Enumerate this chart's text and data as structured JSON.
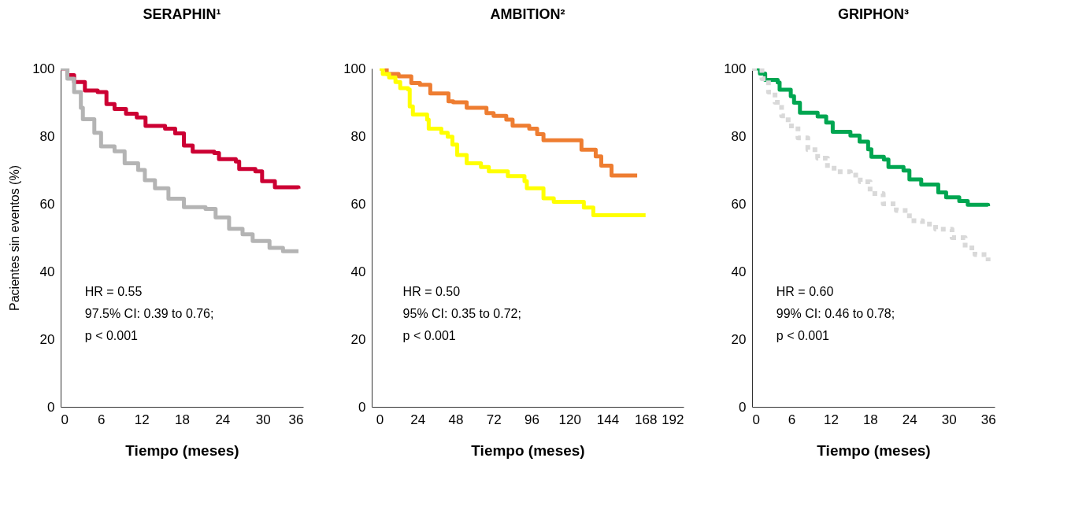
{
  "chart_data": [
    {
      "type": "step",
      "title": "SERAPHIN¹",
      "xlabel": "Tiempo (meses)",
      "ylabel": "Pacientes sin eventos (%)",
      "xlim": [
        0,
        36
      ],
      "ylim": [
        0,
        100
      ],
      "xticks": [
        0,
        6,
        12,
        18,
        24,
        30,
        36
      ],
      "yticks": [
        0,
        20,
        40,
        60,
        80,
        100
      ],
      "grid": false,
      "annotations": [
        "HR = 0.55",
        "97.5% CI: 0.39 to 0.76;",
        "p < 0.001"
      ],
      "series": [
        {
          "color": "#cc0033",
          "line_style": "solid",
          "x": [
            0,
            1,
            2,
            3.6,
            5.5,
            6.8,
            8,
            9.7,
            11.3,
            12.6,
            15.5,
            17,
            18.3,
            19.6,
            22.8,
            23.5,
            26,
            26.5,
            28.9,
            29.9,
            31.8,
            35.3
          ],
          "values": [
            100,
            98,
            96,
            93.5,
            93,
            89.5,
            88,
            86.6,
            85.5,
            83,
            82.2,
            80.8,
            77.2,
            75.4,
            75,
            73.2,
            72.5,
            70.3,
            69.6,
            66.7,
            64.9,
            64.5
          ]
        },
        {
          "color": "#b4b4b4",
          "line_style": "solid",
          "x": [
            0,
            1,
            2,
            3,
            3.3,
            5,
            6,
            8,
            9.5,
            11.5,
            12.5,
            14,
            16,
            18.3,
            21.5,
            23,
            25,
            27,
            28.5,
            31,
            33,
            35.3
          ],
          "values": [
            100,
            97,
            93,
            88.4,
            85,
            81,
            77,
            75.5,
            72,
            70,
            67,
            64.6,
            61.5,
            59,
            58.5,
            56,
            52.6,
            51,
            49,
            47,
            46,
            46
          ]
        }
      ]
    },
    {
      "type": "step",
      "title": "AMBITION²",
      "xlabel": "Tiempo (meses)",
      "xlim": [
        -5,
        192
      ],
      "ylim": [
        0,
        100
      ],
      "xticks": [
        0,
        24,
        48,
        72,
        96,
        120,
        144,
        168,
        192
      ],
      "yticks": [
        0,
        20,
        40,
        60,
        80,
        100
      ],
      "grid": false,
      "annotations": [
        "HR = 0.50",
        "95% CI: 0.35 to 0.72;",
        "p < 0.001"
      ],
      "series": [
        {
          "color": "#ee7d31",
          "line_style": "solid",
          "x": [
            0,
            4.5,
            12,
            20,
            25.5,
            32,
            43.5,
            46.5,
            55,
            67.5,
            72,
            80,
            84,
            94.5,
            99.5,
            103.5,
            127.5,
            136.5,
            140,
            146.5,
            162.7
          ],
          "values": [
            100,
            98.4,
            97.7,
            95.7,
            95.2,
            92.6,
            90.3,
            90,
            88.4,
            86.8,
            86,
            84.9,
            83.1,
            82.2,
            80.6,
            78.8,
            76,
            74,
            71.3,
            68.4,
            68.4
          ]
        },
        {
          "color": "#ffff00",
          "line_style": "solid",
          "x": [
            0,
            2,
            6,
            10,
            13,
            18,
            19,
            21,
            30,
            31,
            39,
            43,
            46,
            49,
            55,
            64,
            69,
            81,
            91.5,
            93,
            103.5,
            110,
            129,
            135,
            168
          ],
          "values": [
            100,
            98.4,
            97.3,
            96,
            94.2,
            93.8,
            88.8,
            86.4,
            84.9,
            82.2,
            81,
            79.8,
            77.5,
            74.4,
            72,
            70.9,
            69.6,
            68.2,
            66.7,
            64.6,
            61.6,
            60.6,
            58.9,
            56.6,
            56.6
          ]
        }
      ]
    },
    {
      "type": "step",
      "title": "GRIPHON³",
      "xlabel": "Tiempo (meses)",
      "xlim": [
        0,
        37
      ],
      "ylim": [
        0,
        100
      ],
      "xticks": [
        0,
        6,
        12,
        18,
        24,
        30,
        36
      ],
      "yticks": [
        0,
        20,
        40,
        60,
        80,
        100
      ],
      "grid": false,
      "annotations": [
        "HR = 0.60",
        "99% CI: 0.46 to 0.78;",
        "p < 0.001"
      ],
      "series": [
        {
          "color": "#00a651",
          "line_style": "solid",
          "x": [
            0,
            1.2,
            2,
            3.9,
            4.2,
            5.9,
            6.4,
            7.3,
            10,
            11.3,
            12.3,
            15,
            16.4,
            17.7,
            18.2,
            20.1,
            20.8,
            23.1,
            24,
            25.8,
            28.4,
            29.6,
            31.6,
            32.9,
            36
          ],
          "values": [
            100,
            98.5,
            96.6,
            95.9,
            93.7,
            91.8,
            89.9,
            86.9,
            85.8,
            84,
            81.3,
            80.2,
            78.4,
            76.1,
            73.9,
            73.1,
            70.9,
            69.8,
            67.2,
            65.7,
            63.4,
            61.9,
            60.8,
            59.7,
            59.3
          ]
        },
        {
          "color": "#d9d9d9",
          "line_style": "dotted",
          "x": [
            0,
            1.5,
            2.5,
            3.5,
            4.5,
            5.5,
            7,
            8.5,
            10,
            11.5,
            13,
            15,
            16.5,
            18,
            20,
            22,
            24,
            26,
            28,
            30.5,
            32.5,
            34,
            36
          ],
          "values": [
            100,
            97,
            93,
            90,
            86,
            83,
            79.5,
            76,
            73.5,
            70.5,
            69.5,
            68.5,
            66.5,
            63,
            60,
            58,
            55,
            54,
            52.5,
            50,
            47,
            45,
            43
          ]
        }
      ]
    }
  ]
}
